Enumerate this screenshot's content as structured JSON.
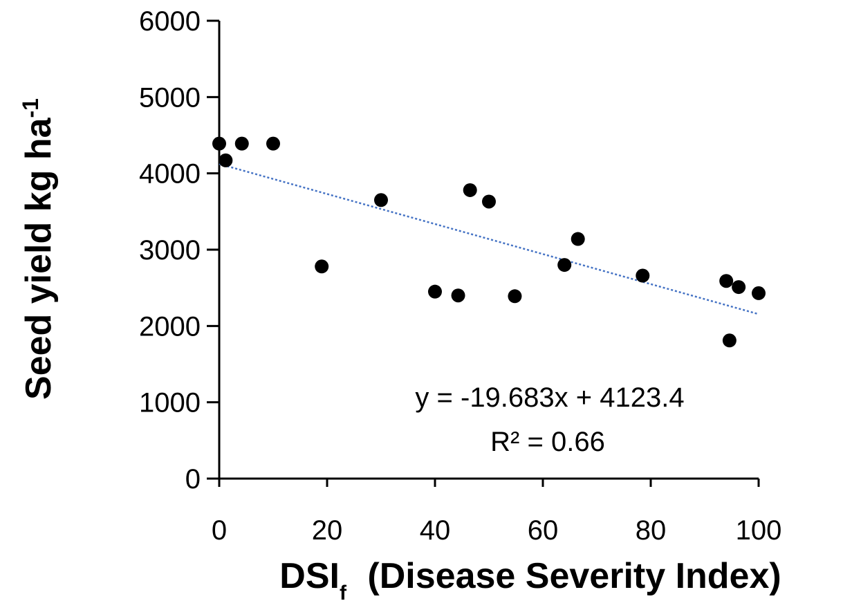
{
  "chart_data": {
    "type": "scatter",
    "xlabel_main": "DSI",
    "xlabel_sub": "f",
    "xlabel_rest": "(Disease Severity Index)",
    "ylabel_main": "Seed yield kg ha",
    "ylabel_sup": "-1",
    "xlim": [
      0,
      100
    ],
    "ylim": [
      0,
      6000
    ],
    "xticks": [
      "0",
      "20",
      "40",
      "60",
      "80",
      "100"
    ],
    "yticks": [
      "0",
      "1000",
      "2000",
      "3000",
      "4000",
      "5000",
      "6000"
    ],
    "grid": false,
    "marker_color": "#000000",
    "trendline_color": "#4472C4",
    "points": [
      {
        "x": 0,
        "y": 4390
      },
      {
        "x": 1.2,
        "y": 4170
      },
      {
        "x": 4.2,
        "y": 4390
      },
      {
        "x": 10,
        "y": 4390
      },
      {
        "x": 19,
        "y": 2780
      },
      {
        "x": 30,
        "y": 3650
      },
      {
        "x": 40,
        "y": 2450
      },
      {
        "x": 44.3,
        "y": 2400
      },
      {
        "x": 46.5,
        "y": 3780
      },
      {
        "x": 50,
        "y": 3630
      },
      {
        "x": 54.8,
        "y": 2390
      },
      {
        "x": 64,
        "y": 2800
      },
      {
        "x": 66.5,
        "y": 3140
      },
      {
        "x": 78.5,
        "y": 2660
      },
      {
        "x": 94,
        "y": 2590
      },
      {
        "x": 94.6,
        "y": 1810
      },
      {
        "x": 96.3,
        "y": 2510
      },
      {
        "x": 100,
        "y": 2430
      }
    ],
    "trendline": {
      "slope": -19.683,
      "intercept": 4123.4,
      "x_range": [
        0,
        100
      ]
    },
    "annotations": {
      "equation": "y = -19.683x + 4123.4",
      "r_squared": "R² = 0.66"
    }
  }
}
